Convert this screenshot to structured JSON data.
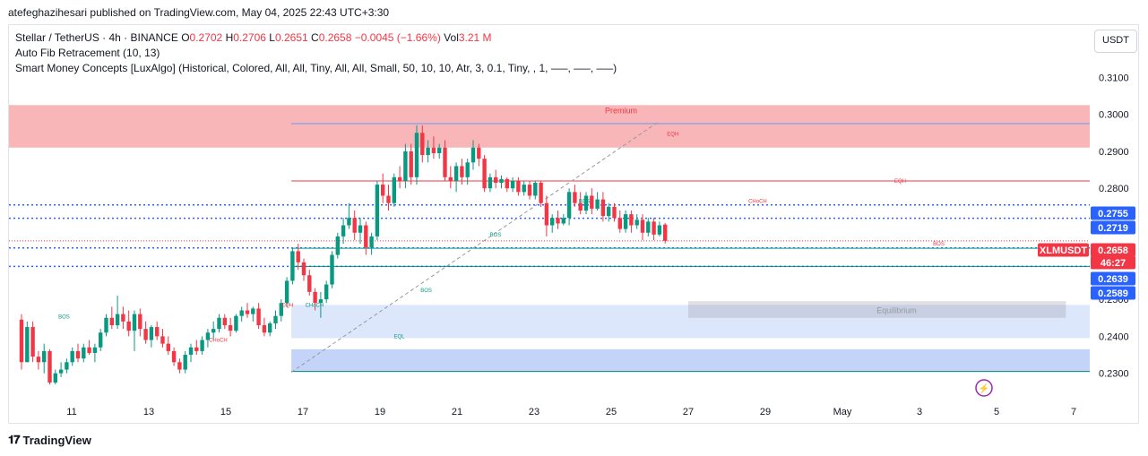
{
  "attribution": "atefeghazihesari published on TradingView.com, May 04, 2025 22:43 UTC+3:30",
  "legend": {
    "symbol": "Stellar / TetherUS · 4h · BINANCE",
    "o_label": "O",
    "o": "0.2702",
    "h_label": "H",
    "h": "0.2706",
    "l_label": "L",
    "l": "0.2651",
    "c_label": "C",
    "c": "0.2658",
    "change": "−0.0045 (−1.66%)",
    "vol_label": "Vol",
    "vol": "3.21 M",
    "indicator1": "Auto Fib Retracement (10, 13)",
    "indicator2": "Smart Money Concepts [LuxAlgo] (Historical, Colored, All, All, Tiny, All, All, Small, 50, 10, 10, Atr, 3, 0.1, Tiny, , 1, —–, —–, —–)"
  },
  "unit_button": "USDT",
  "footer_brand": "TradingView",
  "colors": {
    "up": "#089981",
    "down": "#f23645",
    "blue": "#2962ff",
    "premium": "#f7a9ad",
    "discount": "#9db8f5"
  },
  "chart_data": {
    "type": "candlestick",
    "symbol": "XLMUSDT",
    "timeframe": "4h",
    "x_tick_labels": [
      "11",
      "13",
      "15",
      "17",
      "19",
      "21",
      "23",
      "25",
      "27",
      "29",
      "May",
      "3",
      "5",
      "7"
    ],
    "y_tick_labels": [
      "0.3100",
      "0.3000",
      "0.2900",
      "0.2800",
      "0.2500",
      "0.2400",
      "0.2300"
    ],
    "ylim": [
      0.2275,
      0.3125
    ],
    "price_labels": [
      {
        "text": "0.2755",
        "value": 0.2755,
        "kind": "blue"
      },
      {
        "text": "0.2719",
        "value": 0.2719,
        "kind": "blue"
      },
      {
        "text": "XLMUSDT",
        "value": 0.2658,
        "kind": "red"
      },
      {
        "text": "0.2658",
        "value": 0.2658,
        "kind": "red"
      },
      {
        "text": "46:27",
        "value": 0.2626,
        "kind": "red"
      },
      {
        "text": "0.2639",
        "value": 0.2639,
        "kind": "blue"
      },
      {
        "text": "0.2589",
        "value": 0.2589,
        "kind": "blue"
      }
    ],
    "zones": [
      {
        "name": "Premium",
        "label": "Premium",
        "from_day": 8.0,
        "top": 0.3025,
        "bottom": 0.291,
        "kind": "premium"
      },
      {
        "name": "Equilibrium",
        "label": "Equilibrium",
        "from_day": 16.7,
        "top": 0.2485,
        "bottom": 0.2395,
        "kind": "equilibrium"
      },
      {
        "name": "Discount",
        "label": "",
        "from_day": 16.7,
        "top": 0.2365,
        "bottom": 0.2305,
        "kind": "discount"
      }
    ],
    "annotations": [
      {
        "text": "BOS",
        "day": 10.8,
        "price": 0.2448,
        "kind": "up"
      },
      {
        "text": "CHoCH",
        "day": 14.8,
        "price": 0.2385,
        "kind": "down"
      },
      {
        "text": "EQH",
        "day": 16.6,
        "price": 0.248,
        "kind": "down"
      },
      {
        "text": "CHoCH",
        "day": 17.3,
        "price": 0.248,
        "kind": "up"
      },
      {
        "text": "EQL",
        "day": 19.5,
        "price": 0.2395,
        "kind": "up"
      },
      {
        "text": "BOS",
        "day": 20.2,
        "price": 0.252,
        "kind": "up"
      },
      {
        "text": "BOS",
        "day": 22.0,
        "price": 0.267,
        "kind": "up"
      },
      {
        "text": "BOS",
        "day": 24.3,
        "price": 0.276,
        "kind": "up"
      },
      {
        "text": "EQH",
        "day": 26.6,
        "price": 0.2942,
        "kind": "down"
      },
      {
        "text": "CHoCH",
        "day": 28.8,
        "price": 0.276,
        "kind": "down"
      },
      {
        "text": "EQH",
        "day": 32.5,
        "price": 0.2815,
        "kind": "down"
      },
      {
        "text": "BOS",
        "day": 33.5,
        "price": 0.2645,
        "kind": "down"
      }
    ],
    "candles": [
      {
        "o": 0.2445,
        "h": 0.246,
        "l": 0.231,
        "c": 0.233
      },
      {
        "o": 0.233,
        "h": 0.244,
        "l": 0.233,
        "c": 0.2425
      },
      {
        "o": 0.2425,
        "h": 0.244,
        "l": 0.233,
        "c": 0.2345
      },
      {
        "o": 0.2345,
        "h": 0.236,
        "l": 0.231,
        "c": 0.233
      },
      {
        "o": 0.233,
        "h": 0.238,
        "l": 0.23,
        "c": 0.236
      },
      {
        "o": 0.236,
        "h": 0.2365,
        "l": 0.227,
        "c": 0.2275
      },
      {
        "o": 0.2275,
        "h": 0.231,
        "l": 0.227,
        "c": 0.23
      },
      {
        "o": 0.23,
        "h": 0.233,
        "l": 0.229,
        "c": 0.231
      },
      {
        "o": 0.231,
        "h": 0.234,
        "l": 0.23,
        "c": 0.233
      },
      {
        "o": 0.233,
        "h": 0.237,
        "l": 0.232,
        "c": 0.236
      },
      {
        "o": 0.236,
        "h": 0.238,
        "l": 0.233,
        "c": 0.234
      },
      {
        "o": 0.234,
        "h": 0.238,
        "l": 0.233,
        "c": 0.237
      },
      {
        "o": 0.237,
        "h": 0.239,
        "l": 0.235,
        "c": 0.2355
      },
      {
        "o": 0.2355,
        "h": 0.238,
        "l": 0.233,
        "c": 0.237
      },
      {
        "o": 0.237,
        "h": 0.242,
        "l": 0.236,
        "c": 0.241
      },
      {
        "o": 0.241,
        "h": 0.246,
        "l": 0.24,
        "c": 0.245
      },
      {
        "o": 0.245,
        "h": 0.248,
        "l": 0.242,
        "c": 0.243
      },
      {
        "o": 0.243,
        "h": 0.251,
        "l": 0.242,
        "c": 0.246
      },
      {
        "o": 0.246,
        "h": 0.248,
        "l": 0.242,
        "c": 0.244
      },
      {
        "o": 0.244,
        "h": 0.247,
        "l": 0.24,
        "c": 0.2415
      },
      {
        "o": 0.2415,
        "h": 0.247,
        "l": 0.236,
        "c": 0.246
      },
      {
        "o": 0.246,
        "h": 0.2475,
        "l": 0.24,
        "c": 0.242
      },
      {
        "o": 0.242,
        "h": 0.244,
        "l": 0.238,
        "c": 0.239
      },
      {
        "o": 0.239,
        "h": 0.243,
        "l": 0.237,
        "c": 0.2425
      },
      {
        "o": 0.2425,
        "h": 0.244,
        "l": 0.239,
        "c": 0.24
      },
      {
        "o": 0.24,
        "h": 0.242,
        "l": 0.237,
        "c": 0.238
      },
      {
        "o": 0.238,
        "h": 0.24,
        "l": 0.235,
        "c": 0.236
      },
      {
        "o": 0.236,
        "h": 0.237,
        "l": 0.232,
        "c": 0.233
      },
      {
        "o": 0.233,
        "h": 0.234,
        "l": 0.23,
        "c": 0.231
      },
      {
        "o": 0.231,
        "h": 0.236,
        "l": 0.23,
        "c": 0.235
      },
      {
        "o": 0.235,
        "h": 0.238,
        "l": 0.233,
        "c": 0.237
      },
      {
        "o": 0.237,
        "h": 0.239,
        "l": 0.235,
        "c": 0.236
      },
      {
        "o": 0.236,
        "h": 0.24,
        "l": 0.235,
        "c": 0.239
      },
      {
        "o": 0.239,
        "h": 0.242,
        "l": 0.237,
        "c": 0.241
      },
      {
        "o": 0.241,
        "h": 0.244,
        "l": 0.239,
        "c": 0.242
      },
      {
        "o": 0.242,
        "h": 0.246,
        "l": 0.241,
        "c": 0.245
      },
      {
        "o": 0.245,
        "h": 0.246,
        "l": 0.242,
        "c": 0.243
      },
      {
        "o": 0.243,
        "h": 0.245,
        "l": 0.24,
        "c": 0.2415
      },
      {
        "o": 0.2415,
        "h": 0.246,
        "l": 0.241,
        "c": 0.2455
      },
      {
        "o": 0.2455,
        "h": 0.248,
        "l": 0.244,
        "c": 0.247
      },
      {
        "o": 0.247,
        "h": 0.249,
        "l": 0.245,
        "c": 0.246
      },
      {
        "o": 0.246,
        "h": 0.248,
        "l": 0.244,
        "c": 0.2475
      },
      {
        "o": 0.2475,
        "h": 0.249,
        "l": 0.242,
        "c": 0.243
      },
      {
        "o": 0.243,
        "h": 0.245,
        "l": 0.24,
        "c": 0.241
      },
      {
        "o": 0.241,
        "h": 0.244,
        "l": 0.24,
        "c": 0.2435
      },
      {
        "o": 0.2435,
        "h": 0.247,
        "l": 0.242,
        "c": 0.2455
      },
      {
        "o": 0.2455,
        "h": 0.25,
        "l": 0.244,
        "c": 0.249
      },
      {
        "o": 0.249,
        "h": 0.256,
        "l": 0.248,
        "c": 0.255
      },
      {
        "o": 0.255,
        "h": 0.264,
        "l": 0.254,
        "c": 0.263
      },
      {
        "o": 0.263,
        "h": 0.265,
        "l": 0.258,
        "c": 0.26
      },
      {
        "o": 0.26,
        "h": 0.261,
        "l": 0.255,
        "c": 0.2565
      },
      {
        "o": 0.2565,
        "h": 0.258,
        "l": 0.251,
        "c": 0.252
      },
      {
        "o": 0.252,
        "h": 0.253,
        "l": 0.247,
        "c": 0.249
      },
      {
        "o": 0.249,
        "h": 0.252,
        "l": 0.245,
        "c": 0.25
      },
      {
        "o": 0.25,
        "h": 0.255,
        "l": 0.249,
        "c": 0.254
      },
      {
        "o": 0.254,
        "h": 0.263,
        "l": 0.253,
        "c": 0.262
      },
      {
        "o": 0.262,
        "h": 0.268,
        "l": 0.261,
        "c": 0.267
      },
      {
        "o": 0.267,
        "h": 0.272,
        "l": 0.265,
        "c": 0.27
      },
      {
        "o": 0.27,
        "h": 0.276,
        "l": 0.269,
        "c": 0.272
      },
      {
        "o": 0.272,
        "h": 0.274,
        "l": 0.266,
        "c": 0.268
      },
      {
        "o": 0.268,
        "h": 0.272,
        "l": 0.265,
        "c": 0.27
      },
      {
        "o": 0.27,
        "h": 0.271,
        "l": 0.262,
        "c": 0.264
      },
      {
        "o": 0.264,
        "h": 0.268,
        "l": 0.262,
        "c": 0.267
      },
      {
        "o": 0.267,
        "h": 0.282,
        "l": 0.266,
        "c": 0.281
      },
      {
        "o": 0.281,
        "h": 0.284,
        "l": 0.276,
        "c": 0.278
      },
      {
        "o": 0.278,
        "h": 0.281,
        "l": 0.274,
        "c": 0.276
      },
      {
        "o": 0.276,
        "h": 0.284,
        "l": 0.275,
        "c": 0.283
      },
      {
        "o": 0.283,
        "h": 0.286,
        "l": 0.28,
        "c": 0.282
      },
      {
        "o": 0.282,
        "h": 0.292,
        "l": 0.28,
        "c": 0.29
      },
      {
        "o": 0.29,
        "h": 0.292,
        "l": 0.281,
        "c": 0.283
      },
      {
        "o": 0.283,
        "h": 0.297,
        "l": 0.281,
        "c": 0.295
      },
      {
        "o": 0.295,
        "h": 0.297,
        "l": 0.287,
        "c": 0.289
      },
      {
        "o": 0.289,
        "h": 0.293,
        "l": 0.287,
        "c": 0.291
      },
      {
        "o": 0.291,
        "h": 0.294,
        "l": 0.288,
        "c": 0.2895
      },
      {
        "o": 0.2895,
        "h": 0.292,
        "l": 0.288,
        "c": 0.291
      },
      {
        "o": 0.291,
        "h": 0.293,
        "l": 0.282,
        "c": 0.283
      },
      {
        "o": 0.283,
        "h": 0.286,
        "l": 0.28,
        "c": 0.282
      },
      {
        "o": 0.282,
        "h": 0.287,
        "l": 0.279,
        "c": 0.286
      },
      {
        "o": 0.286,
        "h": 0.288,
        "l": 0.281,
        "c": 0.283
      },
      {
        "o": 0.283,
        "h": 0.288,
        "l": 0.281,
        "c": 0.287
      },
      {
        "o": 0.287,
        "h": 0.293,
        "l": 0.285,
        "c": 0.291
      },
      {
        "o": 0.291,
        "h": 0.292,
        "l": 0.286,
        "c": 0.288
      },
      {
        "o": 0.288,
        "h": 0.289,
        "l": 0.279,
        "c": 0.28
      },
      {
        "o": 0.28,
        "h": 0.284,
        "l": 0.279,
        "c": 0.283
      },
      {
        "o": 0.283,
        "h": 0.285,
        "l": 0.28,
        "c": 0.2815
      },
      {
        "o": 0.2815,
        "h": 0.2835,
        "l": 0.28,
        "c": 0.2825
      },
      {
        "o": 0.2825,
        "h": 0.283,
        "l": 0.279,
        "c": 0.28
      },
      {
        "o": 0.28,
        "h": 0.283,
        "l": 0.279,
        "c": 0.282
      },
      {
        "o": 0.282,
        "h": 0.283,
        "l": 0.278,
        "c": 0.279
      },
      {
        "o": 0.279,
        "h": 0.282,
        "l": 0.278,
        "c": 0.281
      },
      {
        "o": 0.281,
        "h": 0.282,
        "l": 0.277,
        "c": 0.278
      },
      {
        "o": 0.278,
        "h": 0.282,
        "l": 0.277,
        "c": 0.2815
      },
      {
        "o": 0.2815,
        "h": 0.282,
        "l": 0.275,
        "c": 0.276
      },
      {
        "o": 0.276,
        "h": 0.278,
        "l": 0.267,
        "c": 0.27
      },
      {
        "o": 0.27,
        "h": 0.273,
        "l": 0.268,
        "c": 0.272
      },
      {
        "o": 0.272,
        "h": 0.274,
        "l": 0.269,
        "c": 0.2705
      },
      {
        "o": 0.2705,
        "h": 0.273,
        "l": 0.27,
        "c": 0.272
      },
      {
        "o": 0.272,
        "h": 0.28,
        "l": 0.27,
        "c": 0.279
      },
      {
        "o": 0.279,
        "h": 0.281,
        "l": 0.275,
        "c": 0.276
      },
      {
        "o": 0.276,
        "h": 0.279,
        "l": 0.273,
        "c": 0.274
      },
      {
        "o": 0.274,
        "h": 0.279,
        "l": 0.273,
        "c": 0.278
      },
      {
        "o": 0.278,
        "h": 0.28,
        "l": 0.273,
        "c": 0.2745
      },
      {
        "o": 0.2745,
        "h": 0.279,
        "l": 0.274,
        "c": 0.277
      },
      {
        "o": 0.277,
        "h": 0.279,
        "l": 0.271,
        "c": 0.2725
      },
      {
        "o": 0.2725,
        "h": 0.276,
        "l": 0.271,
        "c": 0.275
      },
      {
        "o": 0.275,
        "h": 0.276,
        "l": 0.271,
        "c": 0.272
      },
      {
        "o": 0.272,
        "h": 0.274,
        "l": 0.268,
        "c": 0.269
      },
      {
        "o": 0.269,
        "h": 0.274,
        "l": 0.268,
        "c": 0.273
      },
      {
        "o": 0.273,
        "h": 0.274,
        "l": 0.268,
        "c": 0.27
      },
      {
        "o": 0.27,
        "h": 0.273,
        "l": 0.269,
        "c": 0.2715
      },
      {
        "o": 0.2715,
        "h": 0.273,
        "l": 0.266,
        "c": 0.268
      },
      {
        "o": 0.268,
        "h": 0.272,
        "l": 0.267,
        "c": 0.271
      },
      {
        "o": 0.271,
        "h": 0.272,
        "l": 0.266,
        "c": 0.2675
      },
      {
        "o": 0.2675,
        "h": 0.271,
        "l": 0.267,
        "c": 0.27
      },
      {
        "o": 0.2702,
        "h": 0.2706,
        "l": 0.2651,
        "c": 0.2658
      }
    ]
  }
}
